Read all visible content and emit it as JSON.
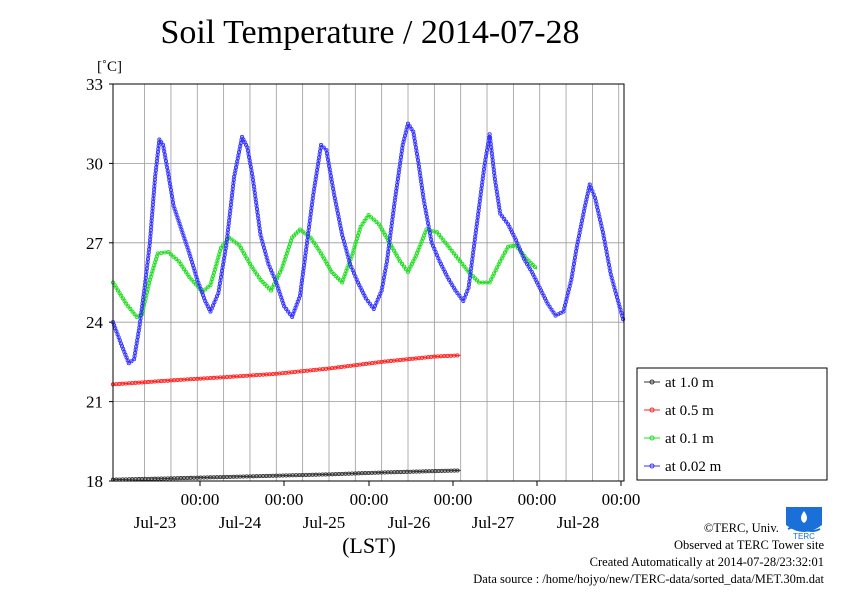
{
  "chart_data": {
    "type": "line",
    "title": "Soil Temperature / 2014-07-28",
    "ylabel": "[˚C]",
    "xlabel": "(LST)",
    "ylim": [
      18,
      33
    ],
    "yticks": [
      18,
      21,
      24,
      27,
      30,
      33
    ],
    "x_range_days": [
      -0.6,
      6.0
    ],
    "xticks": [
      {
        "day": 0,
        "label": "00:00",
        "date": "Jul-23"
      },
      {
        "day": 1,
        "label": "00:00",
        "date": "Jul-24"
      },
      {
        "day": 2,
        "label": "00:00",
        "date": "Jul-25"
      },
      {
        "day": 3,
        "label": "00:00",
        "date": "Jul-26"
      },
      {
        "day": 4,
        "label": "00:00",
        "date": "Jul-27"
      },
      {
        "day": 5,
        "label": "00:00",
        "date": "Jul-28"
      }
    ],
    "grid": true,
    "legend_position": "right",
    "series": [
      {
        "name": "at 1.0 m",
        "color": "#333333",
        "points": [
          [
            -0.6,
            18.05
          ],
          [
            0.5,
            18.1
          ],
          [
            1.5,
            18.15
          ],
          [
            2.5,
            18.2
          ],
          [
            3.5,
            18.25
          ],
          [
            4.5,
            18.32
          ],
          [
            6.0,
            18.4
          ]
        ]
      },
      {
        "name": "at 0.5 m",
        "color": "#ff2020",
        "points": [
          [
            -0.6,
            21.65
          ],
          [
            0.5,
            21.8
          ],
          [
            1.5,
            21.92
          ],
          [
            2.5,
            22.05
          ],
          [
            3.5,
            22.25
          ],
          [
            4.5,
            22.5
          ],
          [
            5.5,
            22.7
          ],
          [
            6.0,
            22.75
          ]
        ]
      },
      {
        "name": "at 0.1 m",
        "color": "#22dd22",
        "points": [
          [
            -0.6,
            25.5
          ],
          [
            -0.35,
            24.7
          ],
          [
            -0.15,
            24.2
          ],
          [
            -0.05,
            24.3
          ],
          [
            0.1,
            25.6
          ],
          [
            0.25,
            26.6
          ],
          [
            0.45,
            26.65
          ],
          [
            0.65,
            26.3
          ],
          [
            0.85,
            25.7
          ],
          [
            1.1,
            25.15
          ],
          [
            1.25,
            25.4
          ],
          [
            1.45,
            26.8
          ],
          [
            1.6,
            27.2
          ],
          [
            1.8,
            26.9
          ],
          [
            2.0,
            26.2
          ],
          [
            2.2,
            25.6
          ],
          [
            2.4,
            25.2
          ],
          [
            2.6,
            26.0
          ],
          [
            2.8,
            27.2
          ],
          [
            2.95,
            27.5
          ],
          [
            3.15,
            27.2
          ],
          [
            3.35,
            26.6
          ],
          [
            3.55,
            25.9
          ],
          [
            3.75,
            25.5
          ],
          [
            3.95,
            26.6
          ],
          [
            4.1,
            27.6
          ],
          [
            4.25,
            28.05
          ],
          [
            4.45,
            27.7
          ],
          [
            4.65,
            27.0
          ],
          [
            4.85,
            26.3
          ],
          [
            5.0,
            25.9
          ],
          [
            5.15,
            26.5
          ],
          [
            5.35,
            27.5
          ],
          [
            5.55,
            27.4
          ],
          [
            5.75,
            26.9
          ],
          [
            5.95,
            26.4
          ],
          [
            6.15,
            25.9
          ],
          [
            6.35,
            25.5
          ],
          [
            6.55,
            25.5
          ],
          [
            6.75,
            26.3
          ],
          [
            6.9,
            26.85
          ],
          [
            7.05,
            26.9
          ],
          [
            7.25,
            26.4
          ],
          [
            7.45,
            26.0
          ]
        ]
      },
      {
        "name": "at 0.02 m",
        "color": "#3333ff",
        "points": [
          [
            -0.6,
            24.0
          ],
          [
            -0.45,
            23.2
          ],
          [
            -0.3,
            22.45
          ],
          [
            -0.2,
            22.6
          ],
          [
            -0.1,
            23.8
          ],
          [
            0.0,
            25.3
          ],
          [
            0.1,
            27.0
          ],
          [
            0.2,
            29.5
          ],
          [
            0.28,
            30.9
          ],
          [
            0.35,
            30.7
          ],
          [
            0.45,
            29.6
          ],
          [
            0.55,
            28.4
          ],
          [
            0.7,
            27.5
          ],
          [
            0.85,
            26.6
          ],
          [
            1.0,
            25.6
          ],
          [
            1.15,
            24.8
          ],
          [
            1.25,
            24.4
          ],
          [
            1.4,
            25.1
          ],
          [
            1.55,
            26.9
          ],
          [
            1.7,
            29.5
          ],
          [
            1.85,
            31.0
          ],
          [
            1.95,
            30.6
          ],
          [
            2.05,
            29.5
          ],
          [
            2.2,
            27.3
          ],
          [
            2.35,
            26.2
          ],
          [
            2.5,
            25.5
          ],
          [
            2.65,
            24.6
          ],
          [
            2.8,
            24.2
          ],
          [
            2.95,
            25.0
          ],
          [
            3.05,
            26.5
          ],
          [
            3.2,
            28.8
          ],
          [
            3.35,
            30.7
          ],
          [
            3.45,
            30.5
          ],
          [
            3.6,
            28.8
          ],
          [
            3.75,
            27.3
          ],
          [
            3.9,
            26.2
          ],
          [
            4.05,
            25.5
          ],
          [
            4.2,
            24.9
          ],
          [
            4.35,
            24.5
          ],
          [
            4.5,
            25.2
          ],
          [
            4.6,
            26.3
          ],
          [
            4.75,
            28.6
          ],
          [
            4.9,
            30.7
          ],
          [
            5.0,
            31.5
          ],
          [
            5.1,
            31.2
          ],
          [
            5.2,
            30.0
          ],
          [
            5.3,
            28.6
          ],
          [
            5.45,
            27.0
          ],
          [
            5.6,
            26.3
          ],
          [
            5.75,
            25.7
          ],
          [
            5.9,
            25.2
          ],
          [
            6.05,
            24.8
          ],
          [
            6.15,
            25.3
          ],
          [
            6.3,
            27.6
          ],
          [
            6.45,
            29.9
          ],
          [
            6.55,
            31.1
          ],
          [
            6.65,
            29.4
          ],
          [
            6.75,
            28.1
          ],
          [
            6.9,
            27.7
          ],
          [
            7.05,
            27.1
          ],
          [
            7.2,
            26.4
          ],
          [
            7.35,
            25.9
          ],
          [
            7.5,
            25.3
          ],
          [
            7.65,
            24.7
          ],
          [
            7.8,
            24.25
          ],
          [
            7.95,
            24.4
          ],
          [
            8.1,
            25.6
          ],
          [
            8.2,
            26.8
          ],
          [
            8.35,
            28.3
          ],
          [
            8.45,
            29.2
          ],
          [
            8.55,
            28.7
          ],
          [
            8.7,
            27.4
          ],
          [
            8.85,
            25.8
          ],
          [
            9.0,
            24.7
          ],
          [
            9.1,
            24.0
          ]
        ]
      }
    ]
  },
  "footer": {
    "copyright": "©TERC, Univ. Tsukuba",
    "observed": "Observed at TERC Tower site",
    "created": "Created Automatically at 2014-07-28/23:32:01",
    "source": "Data source : /home/hojyo/new/TERC-data/sorted_data/MET.30m.dat"
  },
  "logo": {
    "text": "TERC",
    "color": "#1a6fd8"
  }
}
